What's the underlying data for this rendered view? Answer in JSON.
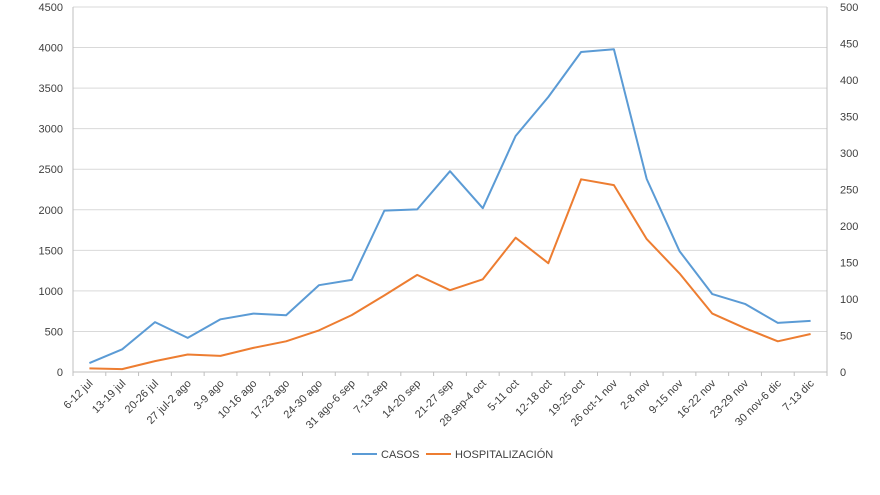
{
  "chart_data": {
    "type": "line",
    "title": "",
    "categories": [
      "6-12 jul",
      "13-19 jul",
      "20-26 jul",
      "27 jul-2 ago",
      "3-9 ago",
      "10-16 ago",
      "17-23 ago",
      "24-30 ago",
      "31 ago-6 sep",
      "7-13 sep",
      "14-20 sep",
      "21-27 sep",
      "28 sep-4 oct",
      "5-11 oct",
      "12-18 oct",
      "19-25 oct",
      "26 oct-1 nov",
      "2-8 nov",
      "9-15 nov",
      "16-22 nov",
      "23-29 nov",
      "30 nov-6 dic",
      "7-13 dic"
    ],
    "series": [
      {
        "name": "CASOS",
        "axis": "left",
        "color": "#5B9BD5",
        "values": [
          110,
          280,
          615,
          420,
          650,
          720,
          700,
          1070,
          1135,
          1990,
          2005,
          2475,
          2020,
          2910,
          3390,
          3945,
          3980,
          2380,
          1490,
          960,
          840,
          605,
          630
        ]
      },
      {
        "name": "HOSPITALIZACIÓN",
        "axis": "right",
        "color": "#ED7D31",
        "values": [
          5,
          4,
          15,
          24,
          22,
          33,
          42,
          57,
          78,
          105,
          133,
          112,
          127,
          184,
          149,
          264,
          256,
          182,
          135,
          80,
          60,
          42,
          52
        ]
      }
    ],
    "y_left": {
      "ylim": [
        0,
        4500
      ],
      "ticks": [
        "0",
        "500",
        "1000",
        "1500",
        "2000",
        "2500",
        "3000",
        "3500",
        "4000",
        "4500"
      ]
    },
    "y_right": {
      "ylim": [
        0,
        500
      ],
      "ticks": [
        "0",
        "50",
        "100",
        "150",
        "200",
        "250",
        "300",
        "350",
        "400",
        "450",
        "500"
      ]
    },
    "grid": true,
    "legend_position": "bottom"
  }
}
